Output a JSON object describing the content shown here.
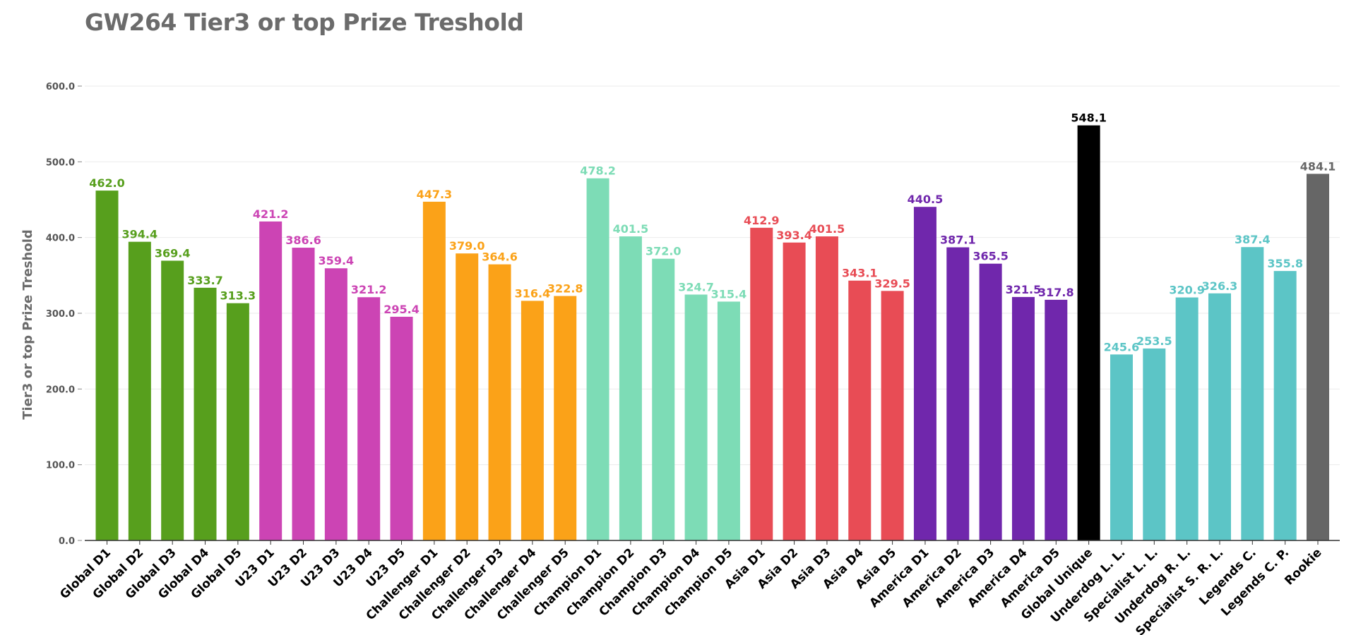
{
  "chart_data": {
    "type": "bar",
    "title": "GW264 Tier3 or top Prize Treshold",
    "xlabel": "",
    "ylabel": "Tier3 or top Prize Treshold",
    "ylim": [
      0,
      600
    ],
    "yticks": [
      "0.0",
      "100.0",
      "200.0",
      "300.0",
      "400.0",
      "500.0",
      "600.0"
    ],
    "grid": true,
    "categories": [
      "Global D1",
      "Global D2",
      "Global D3",
      "Global D4",
      "Global D5",
      "U23 D1",
      "U23 D2",
      "U23 D3",
      "U23 D4",
      "U23 D5",
      "Challenger D1",
      "Challenger D2",
      "Challenger D3",
      "Challenger D4",
      "Challenger D5",
      "Champion D1",
      "Champion D2",
      "Champion D3",
      "Champion D4",
      "Champion D5",
      "Asia D1",
      "Asia D2",
      "Asia D3",
      "Asia D4",
      "Asia D5",
      "America D1",
      "America D2",
      "America D3",
      "America D4",
      "America D5",
      "Global Unique",
      "Underdog L. L.",
      "Specialist L. L.",
      "Underdog R. L.",
      "Specialist S. R. L.",
      "Legends C.",
      "Legends C. P.",
      "Rookie"
    ],
    "values": [
      462.0,
      394.4,
      369.4,
      333.7,
      313.3,
      421.2,
      386.6,
      359.4,
      321.2,
      295.4,
      447.3,
      379.0,
      364.6,
      316.4,
      322.8,
      478.2,
      401.5,
      372.0,
      324.7,
      315.4,
      412.9,
      393.4,
      401.5,
      343.1,
      329.5,
      440.5,
      387.1,
      365.5,
      321.5,
      317.8,
      548.1,
      245.6,
      253.5,
      320.9,
      326.3,
      387.4,
      355.8,
      484.1
    ],
    "value_labels": [
      "462.0",
      "394.4",
      "369.4",
      "333.7",
      "313.3",
      "421.2",
      "386.6",
      "359.4",
      "321.2",
      "295.4",
      "447.3",
      "379.0",
      "364.6",
      "316.4",
      "322.8",
      "478.2",
      "401.5",
      "372.0",
      "324.7",
      "315.4",
      "412.9",
      "393.4",
      "401.5",
      "343.1",
      "329.5",
      "440.5",
      "387.1",
      "365.5",
      "321.5",
      "317.8",
      "548.1",
      "245.6",
      "253.5",
      "320.9",
      "326.3",
      "387.4",
      "355.8",
      "484.1"
    ],
    "colors": [
      "#579f1d",
      "#579f1d",
      "#579f1d",
      "#579f1d",
      "#579f1d",
      "#cc44b4",
      "#cc44b4",
      "#cc44b4",
      "#cc44b4",
      "#cc44b4",
      "#fba218",
      "#fba218",
      "#fba218",
      "#fba218",
      "#fba218",
      "#7ddcb6",
      "#7ddcb6",
      "#7ddcb6",
      "#7ddcb6",
      "#7ddcb6",
      "#e84c55",
      "#e84c55",
      "#e84c55",
      "#e84c55",
      "#e84c55",
      "#7027ac",
      "#7027ac",
      "#7027ac",
      "#7027ac",
      "#7027ac",
      "#000000",
      "#5cc5c6",
      "#5cc5c6",
      "#5cc5c6",
      "#5cc5c6",
      "#5cc5c6",
      "#5cc5c6",
      "#666666"
    ],
    "label_colors": [
      "#579f1d",
      "#579f1d",
      "#579f1d",
      "#579f1d",
      "#579f1d",
      "#cc44b4",
      "#cc44b4",
      "#cc44b4",
      "#cc44b4",
      "#cc44b4",
      "#fba218",
      "#fba218",
      "#fba218",
      "#fba218",
      "#fba218",
      "#7ddcb6",
      "#7ddcb6",
      "#7ddcb6",
      "#7ddcb6",
      "#7ddcb6",
      "#e84c55",
      "#e84c55",
      "#e84c55",
      "#e84c55",
      "#e84c55",
      "#7027ac",
      "#7027ac",
      "#7027ac",
      "#7027ac",
      "#7027ac",
      "#000000",
      "#5cc5c6",
      "#5cc5c6",
      "#5cc5c6",
      "#5cc5c6",
      "#5cc5c6",
      "#5cc5c6",
      "#666666"
    ]
  }
}
